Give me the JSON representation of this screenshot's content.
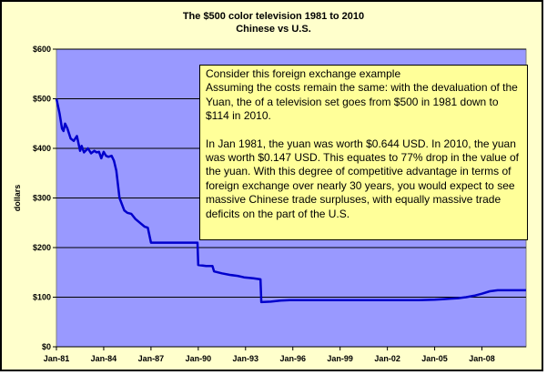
{
  "chart_data": {
    "type": "line",
    "title": "The $500 color television 1981 to 2010",
    "subtitle": "Chinese vs U.S.",
    "ylabel": "dollars",
    "ylim": [
      0,
      600
    ],
    "yticks": [
      0,
      100,
      200,
      300,
      400,
      500,
      600
    ],
    "ytick_labels": [
      "$0",
      "$100",
      "$200",
      "$300",
      "$400",
      "$500",
      "$600"
    ],
    "xlim": [
      1981.0,
      2010.8
    ],
    "xticks": [
      1981,
      1984,
      1987,
      1990,
      1993,
      1996,
      1999,
      2002,
      2005,
      2008
    ],
    "xtick_labels": [
      "Jan-81",
      "Jan-84",
      "Jan-87",
      "Jan-90",
      "Jan-93",
      "Jan-96",
      "Jan-99",
      "Jan-02",
      "Jan-05",
      "Jan-08"
    ],
    "grid": "horizontal",
    "plot_background": "#9999ff",
    "line_color": "#0000cc",
    "series": [
      {
        "x": [
          1981.0,
          1981.2,
          1981.35,
          1981.45,
          1981.55,
          1981.7,
          1981.9,
          1982.1,
          1982.3,
          1982.5,
          1982.6,
          1982.75,
          1983.0,
          1983.2,
          1983.4,
          1983.55,
          1983.7,
          1983.85,
          1984.0,
          1984.15,
          1984.3,
          1984.5,
          1984.65,
          1984.8,
          1985.0,
          1985.3,
          1985.5,
          1985.75,
          1986.0,
          1986.3,
          1986.6,
          1986.8,
          1987.0,
          1987.3,
          1988.0,
          1989.0,
          1989.95,
          1990.0,
          1990.5,
          1990.9,
          1991.0,
          1991.5,
          1992.0,
          1992.5,
          1992.9,
          1993.5,
          1993.95,
          1994.0,
          1994.6,
          1995.2,
          1995.8,
          1996.5,
          1998.0,
          2000.0,
          2002.0,
          2004.0,
          2005.0,
          2005.5,
          2006.0,
          2006.5,
          2007.0,
          2007.5,
          2008.0,
          2008.5,
          2009.0,
          2010.0,
          2010.8
        ],
        "values": [
          500,
          470,
          440,
          435,
          450,
          440,
          420,
          415,
          425,
          395,
          405,
          392,
          400,
          390,
          395,
          392,
          393,
          380,
          393,
          385,
          383,
          385,
          375,
          355,
          300,
          275,
          270,
          268,
          258,
          250,
          242,
          240,
          210,
          210,
          210,
          210,
          210,
          165,
          163,
          163,
          152,
          148,
          145,
          143,
          140,
          138,
          136,
          90,
          91,
          93,
          94,
          94,
          94,
          94,
          94,
          94,
          95,
          96,
          97,
          98,
          100,
          103,
          107,
          112,
          114,
          114,
          114
        ]
      }
    ]
  },
  "note": {
    "para1": "Consider this foreign exchange example\nAssuming the costs remain the same:  with the devaluation of the Yuan, the of a television set goes from $500 in 1981 down to $114 in 2010.",
    "para2": "In Jan 1981, the yuan was worth $0.644 USD.  In 2010, the yuan was worth $0.147 USD.  This equates to 77% drop in the value of the yuan.  With this degree of competitive advantage in terms of foreign exchange over nearly 30 years, you would expect to see massive Chinese trade surpluses, with equally massive trade deficits on the part of the U.S."
  }
}
